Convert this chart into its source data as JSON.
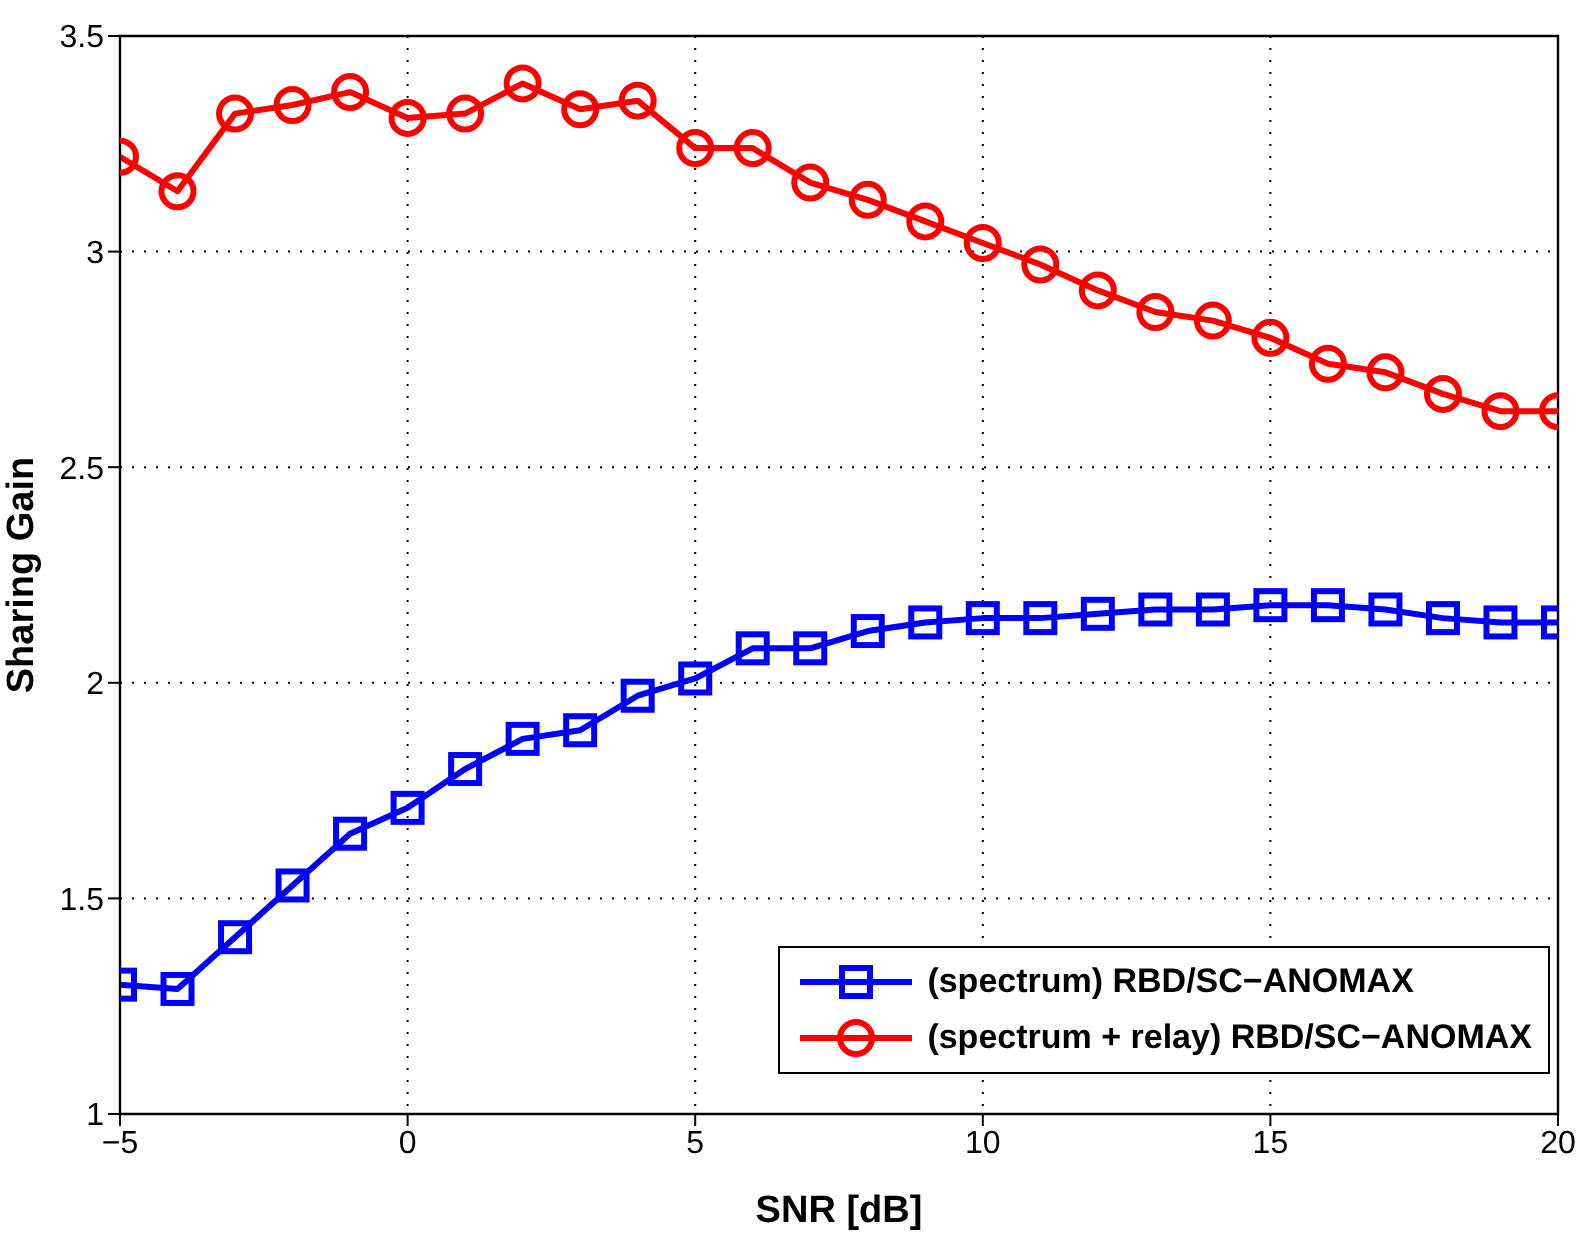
{
  "chart_data": {
    "type": "line",
    "xlabel": "SNR [dB]",
    "ylabel": "Sharing Gain",
    "x": [
      -5,
      -4,
      -3,
      -2,
      -1,
      0,
      1,
      2,
      3,
      4,
      5,
      6,
      7,
      8,
      9,
      10,
      11,
      12,
      13,
      14,
      15,
      16,
      17,
      18,
      19,
      20
    ],
    "series": [
      {
        "name": "(spectrum) RBD/SC−ANOMAX",
        "color": "#0000ff",
        "marker": "square",
        "values": [
          1.3,
          1.29,
          1.41,
          1.53,
          1.65,
          1.71,
          1.8,
          1.87,
          1.89,
          1.97,
          2.01,
          2.08,
          2.08,
          2.12,
          2.14,
          2.15,
          2.15,
          2.16,
          2.17,
          2.17,
          2.18,
          2.18,
          2.17,
          2.15,
          2.14,
          2.14
        ]
      },
      {
        "name": "(spectrum + relay) RBD/SC−ANOMAX",
        "color": "#ff0000",
        "marker": "circle",
        "values": [
          3.22,
          3.14,
          3.32,
          3.34,
          3.37,
          3.31,
          3.32,
          3.39,
          3.33,
          3.35,
          3.24,
          3.24,
          3.16,
          3.12,
          3.07,
          3.02,
          2.97,
          2.91,
          2.86,
          2.84,
          2.8,
          2.74,
          2.72,
          2.67,
          2.63,
          2.63
        ]
      }
    ],
    "xlim": [
      -5,
      20
    ],
    "xticks": [
      -5,
      0,
      5,
      10,
      15,
      20
    ],
    "ylim": [
      1,
      3.5
    ],
    "yticks": [
      1,
      1.5,
      2,
      2.5,
      3,
      3.5
    ],
    "grid": true,
    "legend": "bottom right",
    "line_style": "solid"
  }
}
